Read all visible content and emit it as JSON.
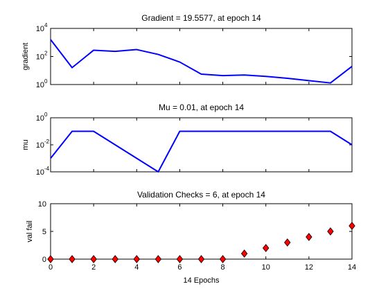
{
  "chart_data": [
    {
      "type": "line",
      "title": "Gradient = 19.5577, at epoch 14",
      "ylabel": "gradient",
      "xlabel": "",
      "yscale": "log",
      "ylim": [
        1,
        10000
      ],
      "xlim": [
        0,
        14
      ],
      "yticks": [
        {
          "base": "10",
          "exp": "0"
        },
        {
          "base": "10",
          "exp": "2"
        },
        {
          "base": "10",
          "exp": "4"
        }
      ],
      "line_color": "#0000ff",
      "x": [
        0,
        1,
        2,
        3,
        4,
        5,
        6,
        7,
        8,
        9,
        10,
        11,
        12,
        13,
        14
      ],
      "values": [
        1600,
        16,
        280,
        230,
        310,
        140,
        40,
        5.5,
        4.3,
        4.8,
        3.8,
        2.8,
        1.9,
        1.3,
        19.5577
      ]
    },
    {
      "type": "line",
      "title": "Mu = 0.01, at epoch 14",
      "ylabel": "mu",
      "xlabel": "",
      "yscale": "log",
      "ylim": [
        0.0001,
        1
      ],
      "xlim": [
        0,
        14
      ],
      "yticks": [
        {
          "base": "10",
          "exp": "-4"
        },
        {
          "base": "10",
          "exp": "-2"
        },
        {
          "base": "10",
          "exp": "0"
        }
      ],
      "line_color": "#0000ff",
      "x": [
        0,
        1,
        2,
        3,
        4,
        5,
        6,
        7,
        8,
        9,
        10,
        11,
        12,
        13,
        14
      ],
      "values": [
        0.001,
        0.1,
        0.1,
        0.01,
        0.001,
        0.0001,
        0.1,
        0.1,
        0.1,
        0.1,
        0.1,
        0.1,
        0.1,
        0.1,
        0.01
      ]
    },
    {
      "type": "scatter",
      "title": "Validation Checks = 6, at epoch 14",
      "ylabel": "val fail",
      "xlabel": "14 Epochs",
      "ylim": [
        0,
        10
      ],
      "xlim": [
        0,
        14
      ],
      "yticks": [
        "0",
        "5",
        "10"
      ],
      "xticks": [
        "0",
        "2",
        "4",
        "6",
        "8",
        "10",
        "12",
        "14"
      ],
      "marker": "diamond",
      "marker_color": "#ff0000",
      "marker_edge": "#000000",
      "x": [
        0,
        1,
        2,
        3,
        4,
        5,
        6,
        7,
        8,
        9,
        10,
        11,
        12,
        13,
        14
      ],
      "values": [
        0,
        0,
        0,
        0,
        0,
        0,
        0,
        0,
        0,
        1,
        2,
        3,
        4,
        5,
        6
      ]
    }
  ]
}
